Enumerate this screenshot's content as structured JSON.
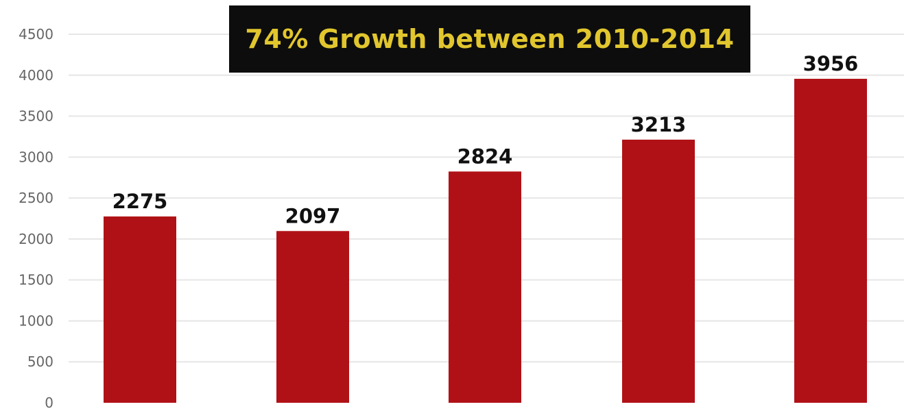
{
  "chart_data": {
    "type": "bar",
    "title": "74% Growth between 2010-2014",
    "categories": [
      "",
      "",
      "",
      "",
      ""
    ],
    "values": [
      2275,
      2097,
      2824,
      3213,
      3956
    ],
    "data_labels": [
      "2275",
      "2097",
      "2824",
      "3213",
      "3956"
    ],
    "xlabel": "",
    "ylabel": "",
    "ylim": [
      0,
      4500
    ],
    "yticks": [
      0,
      500,
      1000,
      1500,
      2000,
      2500,
      3000,
      3500,
      4000,
      4500
    ],
    "grid": true,
    "legend": "none"
  },
  "colors": {
    "bar": "#b01116",
    "title_background": "#0d0d0d",
    "title_text": "#e1c62e",
    "gridline": "#e6e6e6",
    "tick_text": "#666666",
    "data_label_text": "#111111"
  }
}
